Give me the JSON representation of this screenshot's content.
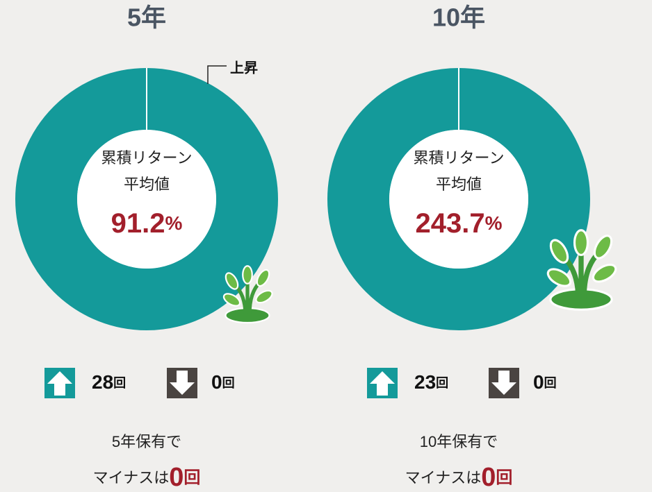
{
  "colors": {
    "up": "#149a9a",
    "down": "#4a4441",
    "accent": "#a21f2b"
  },
  "panels": [
    {
      "title": "5年",
      "donut_label": "上昇",
      "center_label": [
        "累積リターン",
        "平均値"
      ],
      "average": {
        "value": 91.2,
        "unit": "%"
      },
      "up_count": {
        "value": 28,
        "unit": "回"
      },
      "down_count": {
        "value": 0,
        "unit": "回"
      },
      "summary": [
        "5年保有で",
        "マイナスは"
      ],
      "minus_count": {
        "value": 0,
        "unit": "回"
      }
    },
    {
      "title": "10年",
      "center_label": [
        "累積リターン",
        "平均値"
      ],
      "average": {
        "value": 243.7,
        "unit": "%"
      },
      "up_count": {
        "value": 23,
        "unit": "回"
      },
      "down_count": {
        "value": 0,
        "unit": "回"
      },
      "summary": [
        "10年保有で",
        "マイナスは"
      ],
      "minus_count": {
        "value": 0,
        "unit": "回"
      }
    }
  ]
}
